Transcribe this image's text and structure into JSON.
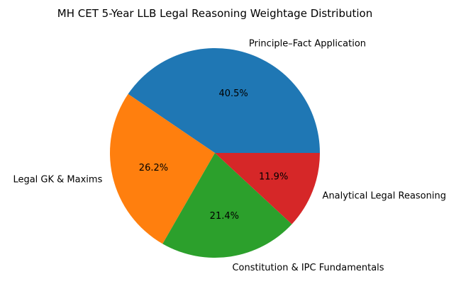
{
  "chart_data": {
    "type": "pie",
    "title": "MH CET 5-Year LLB Legal Reasoning Weightage Distribution",
    "categories": [
      "Principle–Fact Application",
      "Legal GK & Maxims",
      "Constitution & IPC Fundamentals",
      "Analytical Legal Reasoning"
    ],
    "values": [
      40.5,
      26.2,
      21.4,
      11.9
    ],
    "pct_labels": [
      "40.5%",
      "26.2%",
      "21.4%",
      "11.9%"
    ],
    "colors": [
      "#1f77b4",
      "#ff7f0e",
      "#2ca02c",
      "#d62728"
    ],
    "start_angle": 0,
    "direction": "counterclockwise"
  }
}
